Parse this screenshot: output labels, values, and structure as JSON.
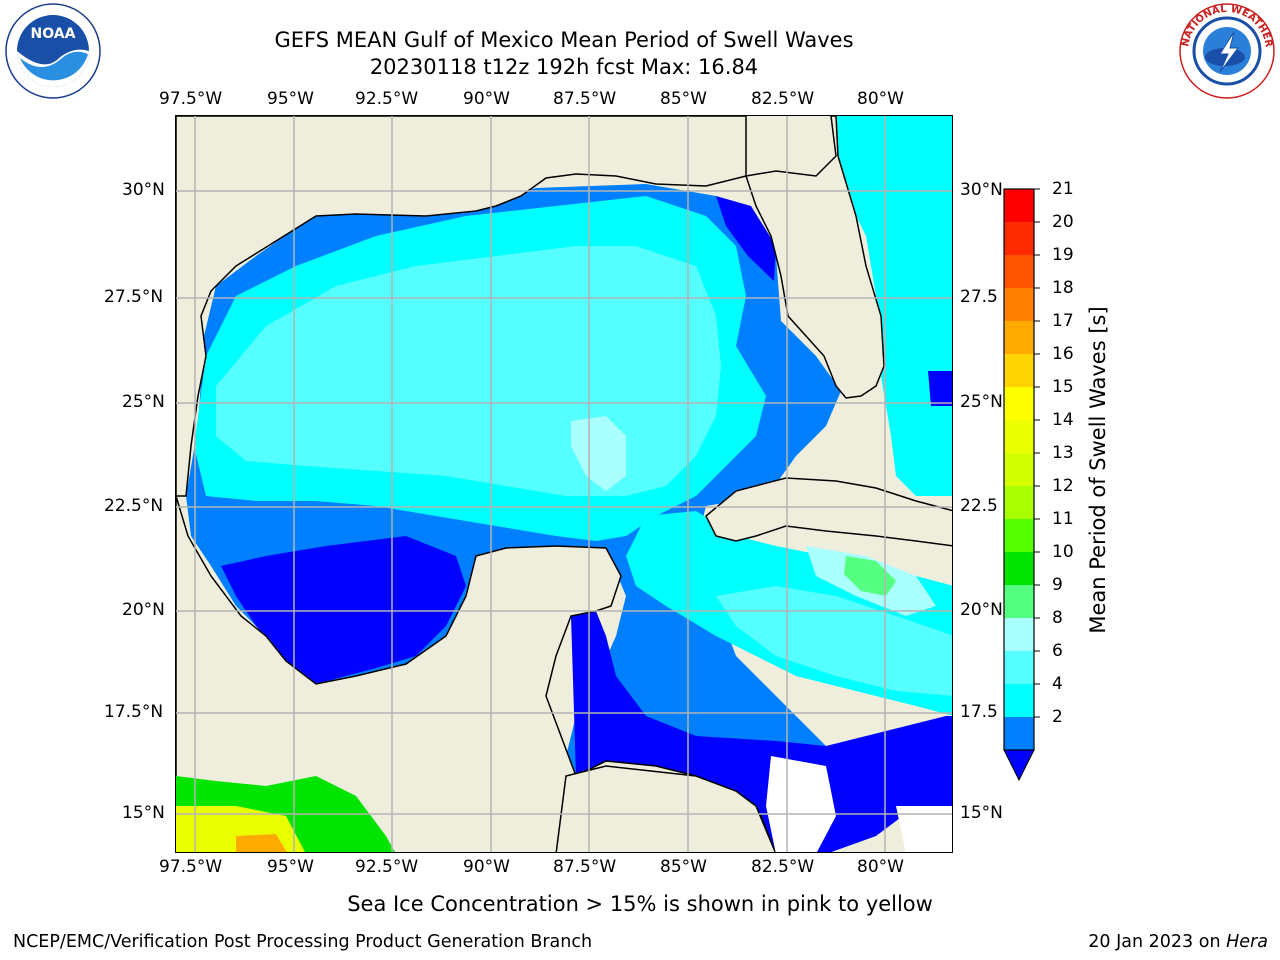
{
  "title_line1": "GEFS MEAN Gulf of Mexico Mean Period of Swell Waves",
  "title_line2": "20230118 t12z 192h fcst   Max: 16.84",
  "lon_ticks": [
    "97.5°W",
    "95°W",
    "92.5°W",
    "90°W",
    "87.5°W",
    "85°W",
    "82.5°W",
    "80°W"
  ],
  "lat_ticks_left": [
    "30°N",
    "27.5°N",
    "25°N",
    "22.5°N",
    "20°N",
    "17.5°N",
    "15°N"
  ],
  "lat_ticks_right": [
    "30°N",
    "27.5",
    "25°N",
    "22.5",
    "20°N",
    "17.5",
    "15°N"
  ],
  "colorbar": {
    "title": "Mean Period of Swell Waves [s]",
    "labels": [
      "21",
      "20",
      "19",
      "18",
      "17",
      "16",
      "15",
      "14",
      "13",
      "12",
      "11",
      "10",
      "9",
      "8",
      "6",
      "4",
      "2"
    ],
    "colors": [
      "#ff0000",
      "#ff2a00",
      "#ff5500",
      "#ff8000",
      "#ffaa00",
      "#ffd400",
      "#ffff00",
      "#eaff00",
      "#d4ff00",
      "#aaff00",
      "#55ff00",
      "#00e400",
      "#55ff80",
      "#aaffff",
      "#55ffff",
      "#00ffff",
      "#0080ff"
    ],
    "extend_color": "#0000ff"
  },
  "colors": {
    "land": "#efeedc",
    "grid": "#b4b4b4",
    "deep_blue": "#0000ff",
    "mid_blue": "#0080ff",
    "cyan": "#00ffff",
    "light_cyan": "#55ffff",
    "pale_cyan": "#aaffff",
    "green": "#55ff80"
  },
  "icons": [
    "noaa-logo",
    "nws-logo"
  ],
  "bottom_note": "Sea Ice Concentration > 15% is shown in pink to yellow",
  "footer_left": "NCEP/EMC/Verification Post Processing Product Generation Branch",
  "footer_date": "20 Jan 2023 on",
  "footer_host": "Hera"
}
